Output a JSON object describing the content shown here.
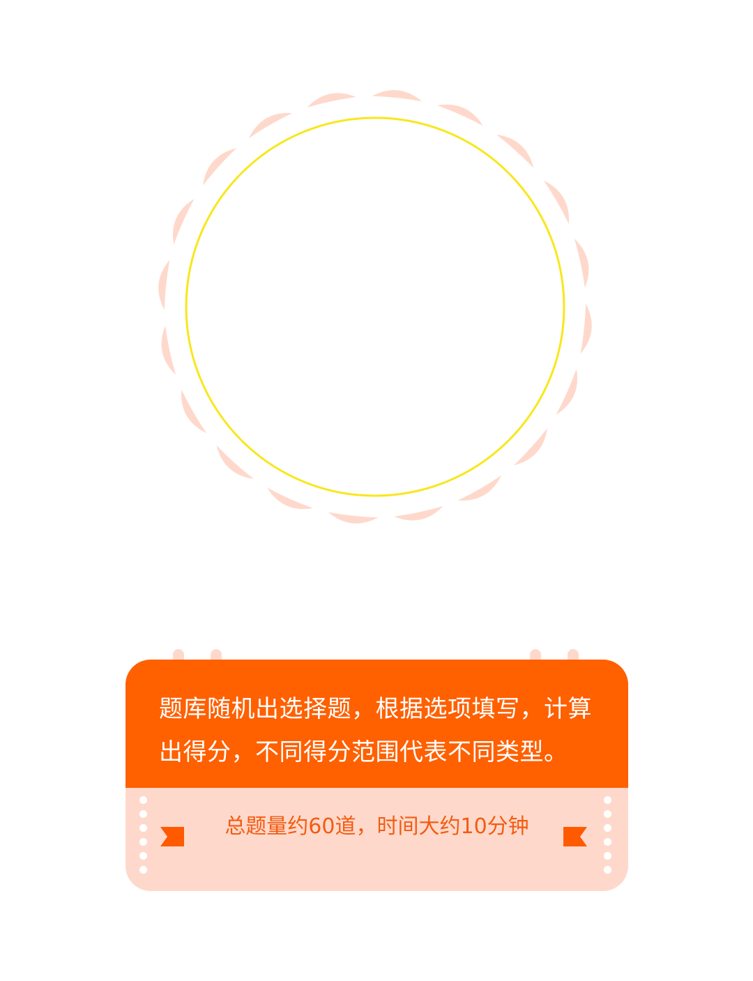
{
  "colors": {
    "accent": "#ff6000",
    "accent_light": "#fed9cb",
    "ring": "#f8e71c",
    "info_text": "#f45b11",
    "flag": "#ff5a00",
    "background": "#ffffff"
  },
  "hero": {
    "icon": "dashed-ring-frame"
  },
  "card": {
    "description": "题库随机出选择题，根据选项填写，计算出得分，不同得分范围代表不同类型。",
    "info": "总题量约60道，时间大约10分钟",
    "left_marker_icon": "ribbon-flag-right-icon",
    "right_marker_icon": "ribbon-flag-left-icon"
  }
}
